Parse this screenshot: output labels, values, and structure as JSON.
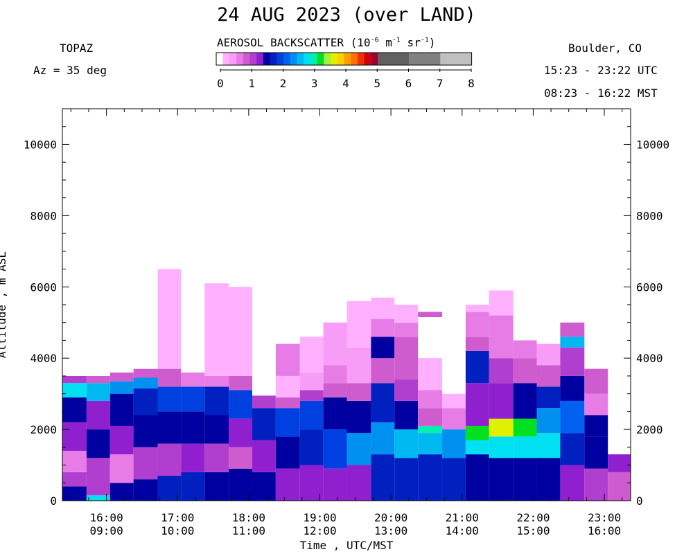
{
  "header": {
    "title": "24 AUG 2023 (over LAND)",
    "instrument": "TOPAZ",
    "azimuth": "Az =  35 deg",
    "site": "Boulder, CO",
    "utc_range": "15:23 - 23:22 UTC",
    "mst_range": "08:23 - 16:22 MST"
  },
  "colorbar": {
    "title_prefix": "AEROSOL BACKSCATTER (10",
    "title_exp1": "-6",
    "title_mid1": " m",
    "title_exp2": "-1",
    "title_mid2": " sr",
    "title_exp3": "-1",
    "title_suffix": ")",
    "tick_labels": [
      "0",
      "1",
      "2",
      "3",
      "4",
      "5",
      "6",
      "7",
      "8"
    ],
    "colors": [
      "#ffffff",
      "#ffb0ff",
      "#f79cf7",
      "#e77ce7",
      "#cf5ccf",
      "#b03fcf",
      "#8f1fcf",
      "#0000a0",
      "#0020c0",
      "#0040e0",
      "#0060f0",
      "#0090f0",
      "#00b8f0",
      "#00e0f0",
      "#00f0b0",
      "#00e020",
      "#a0f040",
      "#e0f000",
      "#ffd000",
      "#ffa000",
      "#ff7000",
      "#f03000",
      "#d00010",
      "#a00030",
      "#606060",
      "#808080",
      "#c0c0c0"
    ],
    "range": [
      0,
      8
    ]
  },
  "chart_data": {
    "type": "heatmap",
    "title": "24 AUG 2023 (over LAND)",
    "xlabel": "Time , UTC/MST",
    "ylabel": "Altitude , m ASL",
    "xlim_hours_utc": [
      15.38,
      23.37
    ],
    "ylim": [
      0,
      11000
    ],
    "x_ticks": [
      {
        "utc": "16:00",
        "mst": "09:00",
        "hour": 16
      },
      {
        "utc": "17:00",
        "mst": "10:00",
        "hour": 17
      },
      {
        "utc": "18:00",
        "mst": "11:00",
        "hour": 18
      },
      {
        "utc": "19:00",
        "mst": "12:00",
        "hour": 19
      },
      {
        "utc": "20:00",
        "mst": "13:00",
        "hour": 20
      },
      {
        "utc": "21:00",
        "mst": "14:00",
        "hour": 21
      },
      {
        "utc": "22:00",
        "mst": "15:00",
        "hour": 22
      },
      {
        "utc": "23:00",
        "mst": "16:00",
        "hour": 23
      }
    ],
    "y_ticks": [
      0,
      2000,
      4000,
      6000,
      8000,
      10000
    ],
    "profiles": [
      {
        "t_start": 15.38,
        "t_end": 15.72,
        "top": 8000,
        "layers": [
          [
            0,
            400,
            1.6
          ],
          [
            400,
            800,
            1.2
          ],
          [
            800,
            1400,
            0.8
          ],
          [
            1400,
            2200,
            1.4
          ],
          [
            2200,
            2900,
            1.6
          ],
          [
            2900,
            3300,
            2.9
          ],
          [
            3300,
            3500,
            1.1
          ],
          [
            3500,
            8000,
            0.2
          ]
        ]
      },
      {
        "t_start": 15.72,
        "t_end": 16.05,
        "top": 7700,
        "layers": [
          [
            0,
            150,
            2.9
          ],
          [
            150,
            1200,
            1.2
          ],
          [
            1200,
            2000,
            1.6
          ],
          [
            2000,
            2800,
            1.4
          ],
          [
            2800,
            3300,
            2.5
          ],
          [
            3300,
            3500,
            1.0
          ],
          [
            3500,
            7700,
            0.2
          ]
        ]
      },
      {
        "t_start": 16.05,
        "t_end": 16.38,
        "top": 7200,
        "layers": [
          [
            0,
            500,
            1.6
          ],
          [
            500,
            1300,
            0.8
          ],
          [
            1300,
            2100,
            1.4
          ],
          [
            2100,
            3000,
            1.6
          ],
          [
            3000,
            3350,
            2.3
          ],
          [
            3350,
            3600,
            0.9
          ],
          [
            3600,
            7200,
            0.2
          ]
        ]
      },
      {
        "t_start": 16.38,
        "t_end": 16.72,
        "top": 6700,
        "layers": [
          [
            0,
            600,
            1.6
          ],
          [
            600,
            1500,
            1.1
          ],
          [
            1500,
            2400,
            1.5
          ],
          [
            2400,
            3150,
            1.8
          ],
          [
            3150,
            3450,
            2.4
          ],
          [
            3450,
            3700,
            0.9
          ],
          [
            3700,
            6700,
            0.2
          ]
        ]
      },
      {
        "t_start": 16.72,
        "t_end": 17.05,
        "top": 6500,
        "layers": [
          [
            0,
            700,
            1.8
          ],
          [
            700,
            1600,
            1.2
          ],
          [
            1600,
            2500,
            1.6
          ],
          [
            2500,
            3200,
            1.9
          ],
          [
            3200,
            3700,
            0.9
          ],
          [
            3700,
            6500,
            0.3
          ]
        ]
      },
      {
        "t_start": 17.05,
        "t_end": 17.38,
        "top": 6200,
        "layers": [
          [
            0,
            800,
            1.7
          ],
          [
            800,
            1600,
            1.3
          ],
          [
            1600,
            2500,
            1.6
          ],
          [
            2500,
            3200,
            1.9
          ],
          [
            3200,
            3600,
            0.8
          ],
          [
            3600,
            6200,
            0.2
          ]
        ]
      },
      {
        "t_start": 17.38,
        "t_end": 17.72,
        "top": 6100,
        "layers": [
          [
            0,
            800,
            1.6
          ],
          [
            800,
            1600,
            1.1
          ],
          [
            1600,
            2400,
            1.5
          ],
          [
            2400,
            3200,
            1.8
          ],
          [
            3200,
            3500,
            0.7
          ],
          [
            3500,
            6100,
            0.3
          ]
        ]
      },
      {
        "t_start": 17.72,
        "t_end": 18.05,
        "top": 6000,
        "layers": [
          [
            0,
            900,
            1.5
          ],
          [
            900,
            1500,
            1.0
          ],
          [
            1500,
            2300,
            1.4
          ],
          [
            2300,
            3100,
            1.9
          ],
          [
            3100,
            3500,
            0.9
          ],
          [
            3500,
            6000,
            0.4
          ]
        ]
      },
      {
        "t_start": 18.05,
        "t_end": 18.38,
        "top": 5800,
        "layers": [
          [
            0,
            800,
            1.6
          ],
          [
            800,
            1700,
            1.3
          ],
          [
            1700,
            2600,
            1.8
          ],
          [
            2600,
            2950,
            1.1
          ],
          [
            2950,
            5800,
            0.2
          ]
        ]
      },
      {
        "t_start": 18.38,
        "t_end": 18.72,
        "top": 4400,
        "layers": [
          [
            0,
            900,
            1.3
          ],
          [
            900,
            1800,
            1.5
          ],
          [
            1800,
            2600,
            1.9
          ],
          [
            2600,
            2900,
            1.0
          ],
          [
            2900,
            3500,
            0.4
          ],
          [
            3500,
            4400,
            0.8
          ]
        ]
      },
      {
        "t_start": 18.72,
        "t_end": 19.05,
        "top": 4600,
        "layers": [
          [
            0,
            1000,
            1.4
          ],
          [
            1000,
            2000,
            1.7
          ],
          [
            2000,
            2800,
            1.9
          ],
          [
            2800,
            3100,
            1.1
          ],
          [
            3100,
            3600,
            0.5
          ],
          [
            3600,
            4600,
            0.3
          ]
        ]
      },
      {
        "t_start": 19.05,
        "t_end": 19.38,
        "top": 5000,
        "layers": [
          [
            0,
            900,
            1.3
          ],
          [
            900,
            2000,
            2.0
          ],
          [
            2000,
            2900,
            1.6
          ],
          [
            2900,
            3300,
            0.9
          ],
          [
            3300,
            3800,
            0.7
          ],
          [
            3800,
            5000,
            0.5
          ]
        ]
      },
      {
        "t_start": 19.38,
        "t_end": 19.72,
        "top": 5600,
        "layers": [
          [
            0,
            1000,
            1.4
          ],
          [
            1000,
            1900,
            2.3
          ],
          [
            1900,
            2800,
            1.5
          ],
          [
            2800,
            3300,
            1.0
          ],
          [
            3300,
            4300,
            0.6
          ],
          [
            4300,
            5600,
            0.3
          ]
        ]
      },
      {
        "t_start": 19.72,
        "t_end": 20.05,
        "top": 5700,
        "layers": [
          [
            0,
            1300,
            1.8
          ],
          [
            1300,
            2200,
            2.4
          ],
          [
            2200,
            3300,
            1.7
          ],
          [
            3300,
            4000,
            1.0
          ],
          [
            4000,
            4600,
            1.5
          ],
          [
            4600,
            5100,
            0.7
          ],
          [
            5100,
            5700,
            0.3
          ]
        ]
      },
      {
        "t_start": 20.05,
        "t_end": 20.38,
        "top": 5500,
        "layers": [
          [
            0,
            1200,
            1.8
          ],
          [
            1200,
            2000,
            2.6
          ],
          [
            2000,
            2800,
            1.6
          ],
          [
            2800,
            3400,
            1.2
          ],
          [
            3400,
            4600,
            1.0
          ],
          [
            4600,
            5000,
            0.8
          ],
          [
            5000,
            5500,
            0.3
          ]
        ]
      },
      {
        "t_start": 20.38,
        "t_end": 20.72,
        "top": 5300,
        "layers": [
          [
            0,
            1300,
            1.7
          ],
          [
            1300,
            1900,
            2.6
          ],
          [
            1900,
            2100,
            3.0
          ],
          [
            2100,
            2600,
            0.9
          ],
          [
            2600,
            3100,
            0.7
          ],
          [
            3100,
            4000,
            0.3
          ],
          [
            5150,
            5300,
            0.9
          ]
        ]
      },
      {
        "t_start": 20.72,
        "t_end": 21.05,
        "top": 3900,
        "layers": [
          [
            0,
            1200,
            1.7
          ],
          [
            1200,
            2000,
            2.4
          ],
          [
            2000,
            2600,
            0.7
          ],
          [
            2600,
            3000,
            0.4
          ],
          [
            3000,
            3900,
            0.1
          ]
        ]
      },
      {
        "t_start": 21.05,
        "t_end": 21.38,
        "top": 5500,
        "layers": [
          [
            0,
            1300,
            1.6
          ],
          [
            1300,
            1700,
            2.9
          ],
          [
            1700,
            2100,
            3.3
          ],
          [
            2100,
            3300,
            1.3
          ],
          [
            3300,
            4200,
            1.7
          ],
          [
            4200,
            4600,
            1.0
          ],
          [
            4600,
            5300,
            0.7
          ],
          [
            5300,
            5500,
            0.3
          ]
        ]
      },
      {
        "t_start": 21.38,
        "t_end": 21.72,
        "top": 5900,
        "layers": [
          [
            0,
            1200,
            1.5
          ],
          [
            1200,
            1800,
            2.8
          ],
          [
            1800,
            2300,
            3.6
          ],
          [
            2300,
            3300,
            1.4
          ],
          [
            3300,
            4000,
            1.1
          ],
          [
            4000,
            5200,
            0.7
          ],
          [
            5200,
            5900,
            0.4
          ]
        ]
      },
      {
        "t_start": 21.72,
        "t_end": 22.05,
        "top": 4500,
        "layers": [
          [
            0,
            1200,
            1.5
          ],
          [
            1200,
            1800,
            2.9
          ],
          [
            1800,
            2300,
            3.3
          ],
          [
            2300,
            3300,
            1.5
          ],
          [
            3300,
            4000,
            1.0
          ],
          [
            4000,
            4500,
            0.7
          ]
        ]
      },
      {
        "t_start": 22.05,
        "t_end": 22.38,
        "top": 4400,
        "layers": [
          [
            0,
            1200,
            1.6
          ],
          [
            1200,
            1900,
            2.8
          ],
          [
            1900,
            2600,
            2.4
          ],
          [
            2600,
            3200,
            1.7
          ],
          [
            3200,
            3800,
            0.9
          ],
          [
            3800,
            4400,
            0.5
          ]
        ]
      },
      {
        "t_start": 22.38,
        "t_end": 22.72,
        "top": 5000,
        "layers": [
          [
            0,
            1000,
            1.3
          ],
          [
            1000,
            1900,
            1.8
          ],
          [
            1900,
            2800,
            2.1
          ],
          [
            2800,
            3500,
            1.5
          ],
          [
            3500,
            4300,
            1.1
          ],
          [
            4300,
            4600,
            2.5
          ],
          [
            4600,
            5000,
            0.9
          ]
        ]
      },
      {
        "t_start": 22.72,
        "t_end": 23.05,
        "top": 3700,
        "layers": [
          [
            0,
            900,
            1.2
          ],
          [
            900,
            1800,
            1.5
          ],
          [
            1800,
            2400,
            1.6
          ],
          [
            2400,
            3000,
            0.7
          ],
          [
            3000,
            3700,
            0.9
          ]
        ]
      },
      {
        "t_start": 23.05,
        "t_end": 23.37,
        "top": 1300,
        "layers": [
          [
            0,
            800,
            1.0
          ],
          [
            800,
            1300,
            1.3
          ]
        ]
      }
    ]
  }
}
